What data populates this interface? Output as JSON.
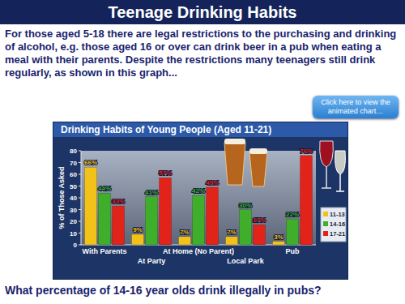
{
  "slide": {
    "title": "Teenage Drinking Habits",
    "text": "For those aged 5-18 there are legal restrictions to the purchasing and drinking of alcohol, e.g. those aged 16 or over can drink beer in a pub when eating a meal with their parents. Despite the restrictions many teenagers still drink regularly, as shown in this graph...",
    "button": "Click here to view the animated chart…",
    "question": "What percentage of 14-16 year olds drink illegally in pubs?"
  },
  "chart_data": {
    "type": "bar",
    "title": "Drinking Habits of Young People (Aged 11-21)",
    "y_label": "% of Those Asked",
    "categories": [
      "With Parents",
      "At Party",
      "At Home (No Parent)",
      "Local Park",
      "Pub"
    ],
    "series": [
      {
        "name": "11-13",
        "color": "#f2c21b",
        "values": [
          66,
          9,
          7,
          7,
          3
        ],
        "value_labels": [
          "66%",
          "9%",
          "7%",
          "7%",
          "3%"
        ]
      },
      {
        "name": "14-16",
        "color": "#3fae2a",
        "values": [
          44,
          41,
          42,
          30,
          22
        ],
        "value_labels": [
          "44%",
          "41%",
          "42%",
          "30%",
          "22%"
        ]
      },
      {
        "name": "17-21",
        "color": "#e2231a",
        "values": [
          33,
          57,
          49,
          17,
          76
        ],
        "value_labels": [
          "33%",
          "57%",
          "49%",
          "17%",
          "76%"
        ]
      }
    ],
    "ylim": [
      0,
      80
    ],
    "yticks": [
      0,
      10,
      20,
      30,
      40,
      50,
      60,
      70,
      80
    ],
    "grid": false,
    "legend": "right",
    "data_labels": true
  }
}
